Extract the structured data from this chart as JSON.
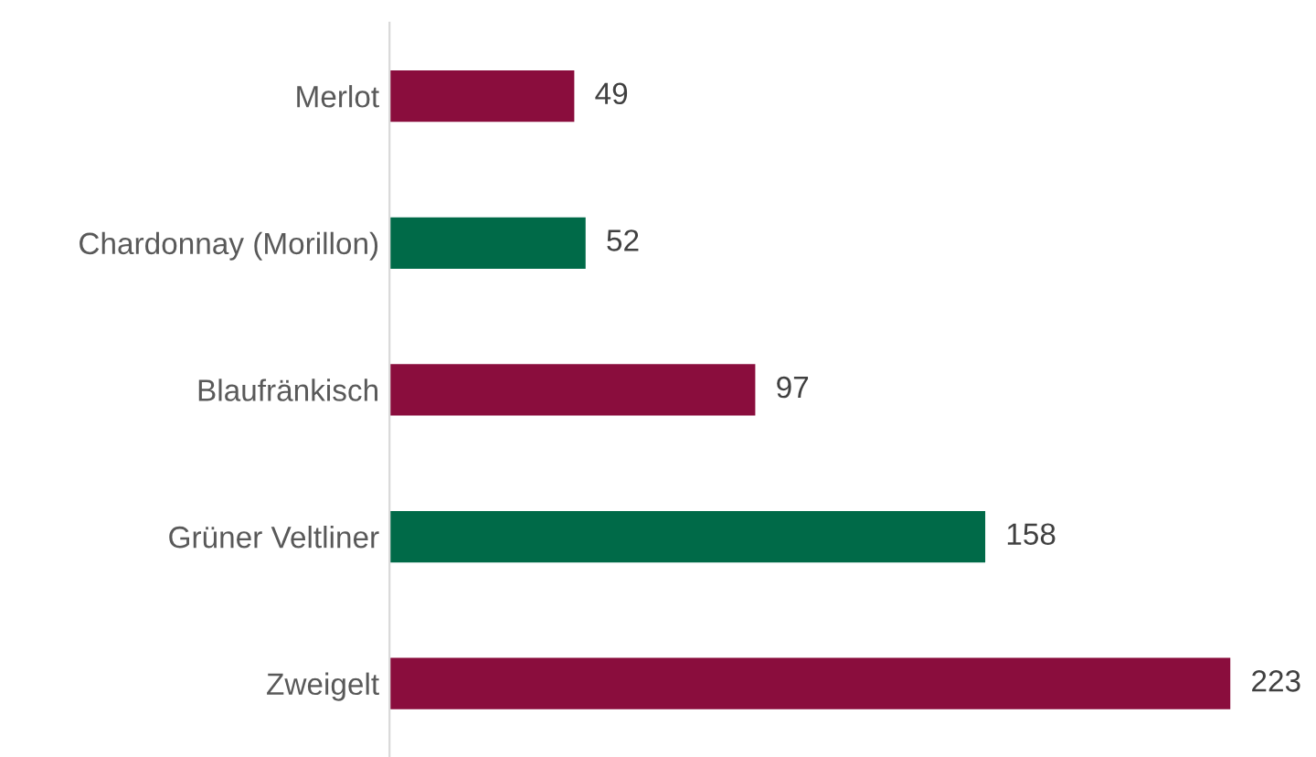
{
  "chart_data": {
    "type": "bar",
    "orientation": "horizontal",
    "categories": [
      "Merlot",
      "Chardonnay (Morillon)",
      "Blaufränkisch",
      "Grüner Veltliner",
      "Zweigelt"
    ],
    "values": [
      49,
      52,
      97,
      158,
      223
    ],
    "colors": [
      "#8a0d3d",
      "#006a48",
      "#8a0d3d",
      "#006a48",
      "#8a0d3d"
    ],
    "tick_labels": "y",
    "data_labels": true,
    "grid": false,
    "legend": false
  }
}
